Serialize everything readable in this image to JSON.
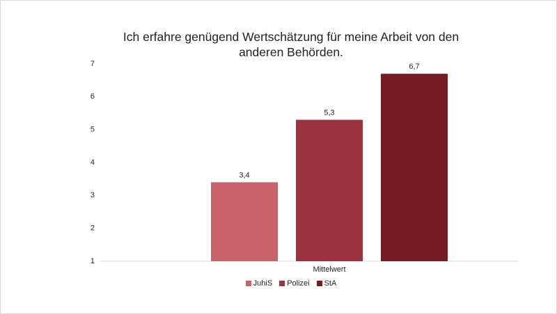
{
  "chart_data": {
    "type": "bar",
    "title": "Ich erfahre genügend Wertschätzung für meine Arbeit von den anderen Behörden.",
    "categories": [
      "Mittelwert"
    ],
    "series": [
      {
        "name": "JuhiS",
        "color": "#c8636a",
        "values": [
          3.4
        ],
        "value_labels": [
          "3,4"
        ]
      },
      {
        "name": "Polizei",
        "color": "#9b333e",
        "values": [
          5.3
        ],
        "value_labels": [
          "5,3"
        ]
      },
      {
        "name": "StA",
        "color": "#761b22",
        "values": [
          6.7
        ],
        "value_labels": [
          "6,7"
        ]
      }
    ],
    "ylim": [
      1,
      7
    ],
    "yticks": [
      1,
      2,
      3,
      4,
      5,
      6,
      7
    ],
    "grid": false,
    "legend": "bottom"
  }
}
